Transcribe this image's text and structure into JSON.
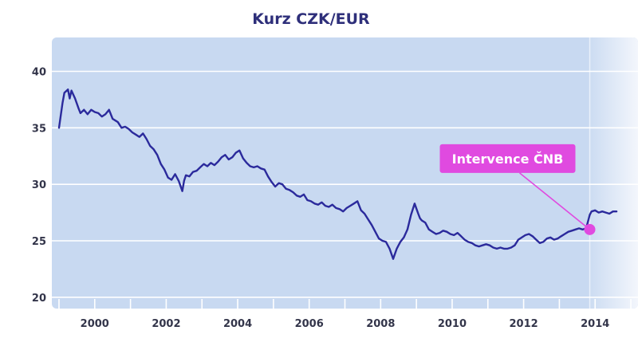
{
  "chart_data": {
    "type": "line",
    "title": "Kurz CZK/EUR",
    "xlabel": "",
    "ylabel": "",
    "xlim": [
      1998.8,
      2015.2
    ],
    "ylim": [
      19,
      43
    ],
    "x_ticks": [
      "2000",
      "2002",
      "2004",
      "2006",
      "2008",
      "2010",
      "2012",
      "2014"
    ],
    "y_ticks": [
      "20",
      "25",
      "30",
      "35",
      "40"
    ],
    "grid": true,
    "highlight_region": {
      "from": 2013.85,
      "to": 2015.2
    },
    "annotation": {
      "text": "Intervence ČNB",
      "x": 2013.85,
      "y": 26.0
    },
    "colors": {
      "line": "#2b2a9c",
      "plot_bg": "#c8d9f1",
      "annotation": "#e04ae0",
      "title": "#2e2f7a"
    },
    "series": [
      {
        "x": [
          1999.0,
          1999.1,
          1999.15,
          1999.25,
          1999.3,
          1999.35,
          1999.45,
          1999.55,
          1999.6,
          1999.7,
          1999.8,
          1999.9,
          2000.0,
          2000.1,
          2000.2,
          2000.3,
          2000.4,
          2000.5,
          2000.6,
          2000.65,
          2000.75,
          2000.85,
          2000.95,
          2001.05,
          2001.15,
          2001.25,
          2001.35,
          2001.45,
          2001.55,
          2001.65,
          2001.75,
          2001.85,
          2001.95,
          2002.05,
          2002.15,
          2002.25,
          2002.35,
          2002.45,
          2002.5,
          2002.55,
          2002.65,
          2002.75,
          2002.85,
          2002.95,
          2003.05,
          2003.15,
          2003.25,
          2003.35,
          2003.45,
          2003.55,
          2003.65,
          2003.75,
          2003.85,
          2003.95,
          2004.05,
          2004.15,
          2004.25,
          2004.35,
          2004.45,
          2004.55,
          2004.65,
          2004.75,
          2004.85,
          2004.95,
          2005.05,
          2005.15,
          2005.25,
          2005.35,
          2005.45,
          2005.55,
          2005.65,
          2005.75,
          2005.85,
          2005.95,
          2006.05,
          2006.15,
          2006.25,
          2006.35,
          2006.45,
          2006.55,
          2006.65,
          2006.75,
          2006.85,
          2006.95,
          2007.05,
          2007.15,
          2007.25,
          2007.35,
          2007.45,
          2007.55,
          2007.65,
          2007.75,
          2007.85,
          2007.95,
          2008.05,
          2008.15,
          2008.25,
          2008.35,
          2008.45,
          2008.5,
          2008.55,
          2008.65,
          2008.75,
          2008.85,
          2008.95,
          2009.05,
          2009.1,
          2009.15,
          2009.25,
          2009.35,
          2009.45,
          2009.55,
          2009.65,
          2009.75,
          2009.85,
          2009.95,
          2010.05,
          2010.15,
          2010.25,
          2010.35,
          2010.45,
          2010.55,
          2010.65,
          2010.75,
          2010.85,
          2010.95,
          2011.05,
          2011.15,
          2011.25,
          2011.35,
          2011.45,
          2011.55,
          2011.65,
          2011.75,
          2011.85,
          2011.95,
          2012.05,
          2012.15,
          2012.25,
          2012.35,
          2012.45,
          2012.55,
          2012.65,
          2012.75,
          2012.85,
          2012.95,
          2013.05,
          2013.15,
          2013.25,
          2013.35,
          2013.45,
          2013.55,
          2013.65,
          2013.75,
          2013.85,
          2013.9,
          2014.0,
          2014.1,
          2014.2,
          2014.3,
          2014.4,
          2014.5,
          2014.6
        ],
        "values": [
          35.0,
          37.2,
          38.1,
          38.4,
          37.6,
          38.3,
          37.6,
          36.7,
          36.3,
          36.6,
          36.2,
          36.6,
          36.4,
          36.3,
          36.0,
          36.2,
          36.6,
          35.8,
          35.6,
          35.5,
          35.0,
          35.1,
          34.9,
          34.6,
          34.4,
          34.2,
          34.5,
          34.0,
          33.4,
          33.1,
          32.6,
          31.8,
          31.3,
          30.6,
          30.4,
          30.9,
          30.3,
          29.4,
          30.3,
          30.8,
          30.7,
          31.1,
          31.2,
          31.5,
          31.8,
          31.6,
          31.9,
          31.7,
          32.0,
          32.4,
          32.6,
          32.2,
          32.4,
          32.8,
          33.0,
          32.3,
          31.9,
          31.6,
          31.5,
          31.6,
          31.4,
          31.3,
          30.7,
          30.2,
          29.8,
          30.1,
          30.0,
          29.6,
          29.5,
          29.3,
          29.0,
          28.9,
          29.1,
          28.6,
          28.5,
          28.3,
          28.2,
          28.4,
          28.1,
          28.0,
          28.2,
          27.9,
          27.8,
          27.6,
          27.9,
          28.1,
          28.3,
          28.5,
          27.7,
          27.4,
          26.9,
          26.4,
          25.8,
          25.2,
          25.0,
          24.9,
          24.3,
          23.4,
          24.3,
          24.6,
          24.9,
          25.3,
          26.0,
          27.3,
          28.3,
          27.4,
          27.0,
          26.8,
          26.6,
          26.0,
          25.8,
          25.6,
          25.7,
          25.9,
          25.8,
          25.6,
          25.5,
          25.7,
          25.4,
          25.1,
          24.9,
          24.8,
          24.6,
          24.5,
          24.6,
          24.7,
          24.6,
          24.4,
          24.3,
          24.4,
          24.3,
          24.3,
          24.4,
          24.6,
          25.1,
          25.3,
          25.5,
          25.6,
          25.4,
          25.1,
          24.8,
          24.9,
          25.2,
          25.3,
          25.1,
          25.2,
          25.4,
          25.6,
          25.8,
          25.9,
          26.0,
          26.1,
          26.0,
          26.1,
          27.3,
          27.6,
          27.7,
          27.5,
          27.6,
          27.5,
          27.4,
          27.6,
          27.6
        ]
      }
    ]
  }
}
